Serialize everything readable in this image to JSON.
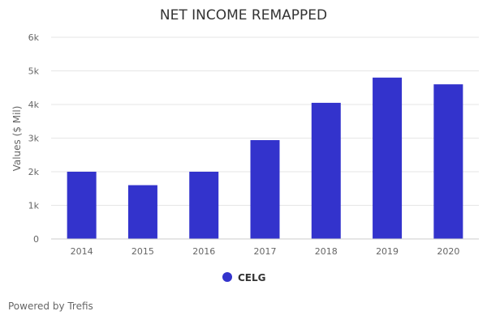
{
  "chart_data": {
    "type": "bar",
    "title": "NET INCOME REMAPPED",
    "xlabel": "",
    "ylabel": "Values ($ Mil)",
    "categories": [
      "2014",
      "2015",
      "2016",
      "2017",
      "2018",
      "2019",
      "2020"
    ],
    "series": [
      {
        "name": "CELG",
        "values": [
          2000,
          1600,
          2000,
          2940,
          4050,
          4800,
          4600
        ],
        "color": "#3333cc"
      }
    ],
    "ylim": [
      0,
      6000
    ],
    "yticks": [
      0,
      1000,
      2000,
      3000,
      4000,
      5000,
      6000
    ],
    "ytick_labels": [
      "0",
      "1k",
      "2k",
      "3k",
      "4k",
      "5k",
      "6k"
    ],
    "grid": true,
    "legend_position": "bottom-center"
  },
  "credit": "Powered by Trefis"
}
